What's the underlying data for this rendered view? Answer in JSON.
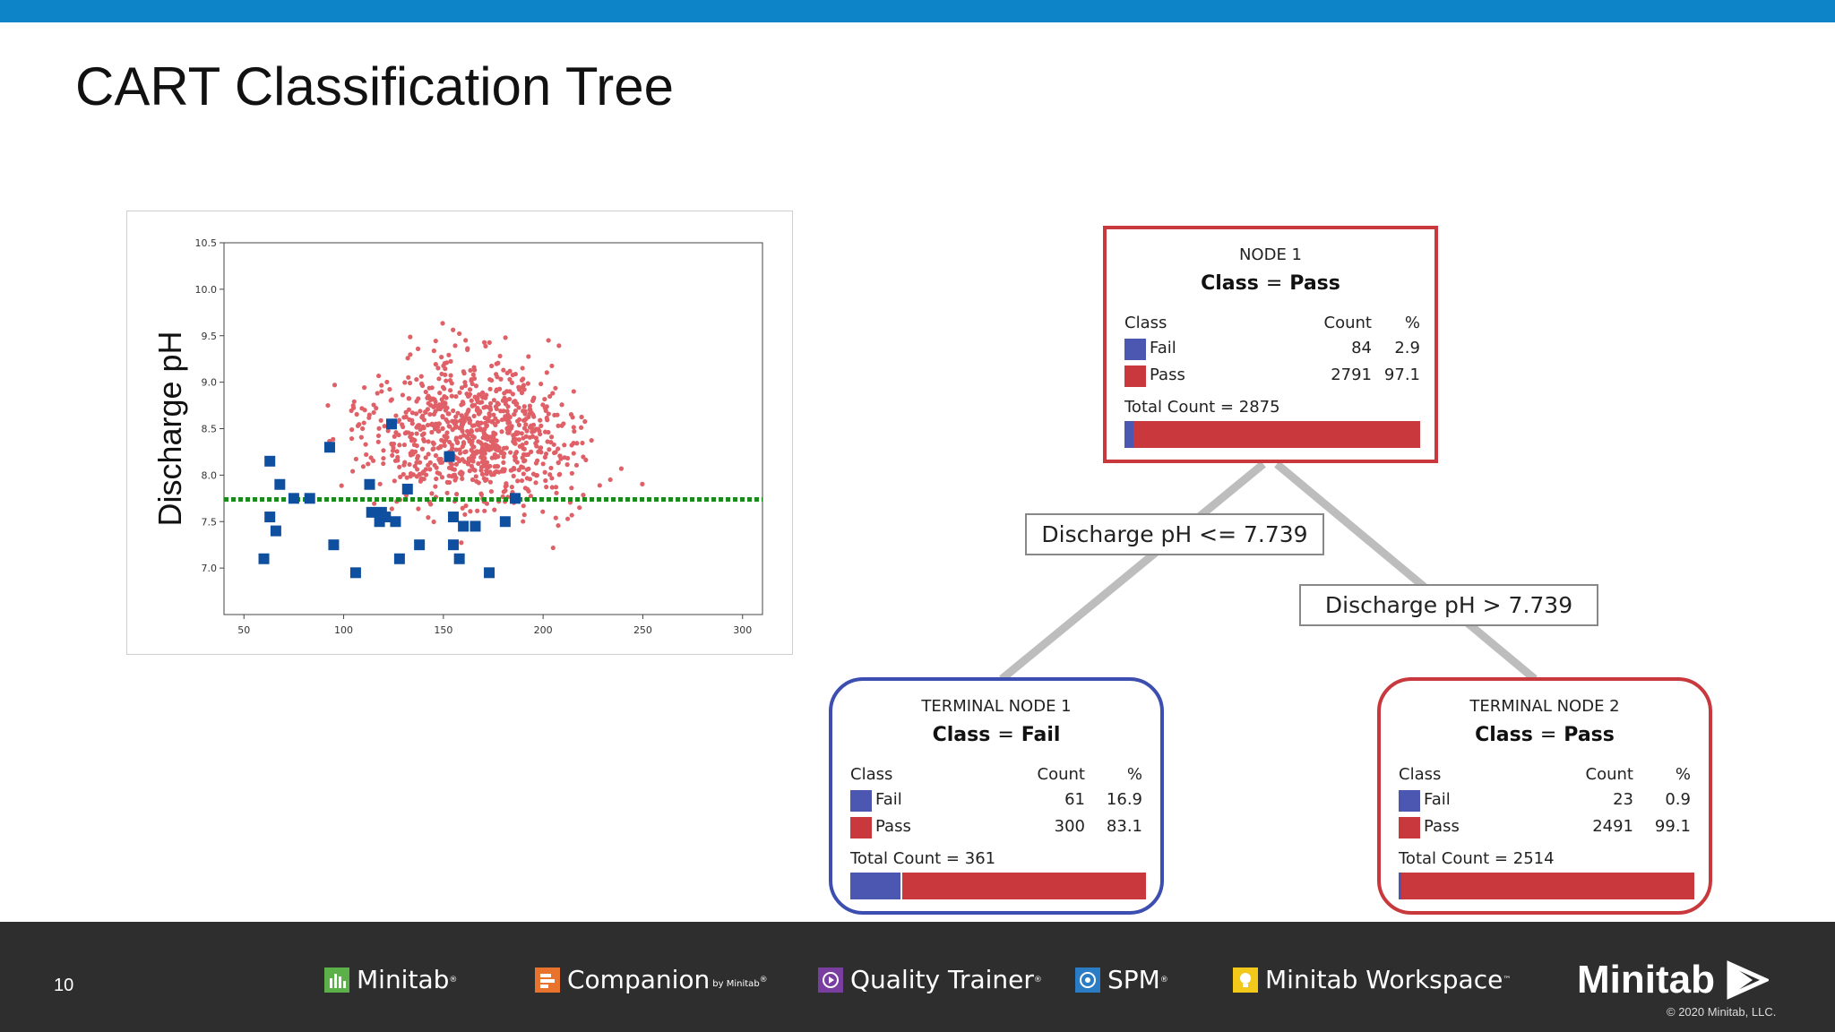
{
  "page": {
    "title": "CART Classification Tree",
    "page_number": "10"
  },
  "chart_data": {
    "type": "scatter",
    "title": "",
    "xlabel": "",
    "ylabel": "Discharge pH",
    "xlim": [
      40,
      310
    ],
    "ylim": [
      6.5,
      10.5
    ],
    "xticks": [
      50,
      100,
      150,
      200,
      250,
      300
    ],
    "yticks": [
      7.0,
      7.5,
      8.0,
      8.5,
      9.0,
      9.5,
      10.0,
      10.5
    ],
    "ytick_labels": [
      "7.0",
      "7.5",
      "8.0",
      "8.5",
      "9.0",
      "9.5",
      "10.0",
      "10.5"
    ],
    "threshold": {
      "y": 7.739,
      "color": "#1a8a1a",
      "style": "dotted"
    },
    "series": [
      {
        "class": "Fail",
        "marker": "square",
        "color": "#0e4fa0",
        "points": [
          [
            60,
            7.1
          ],
          [
            63,
            8.15
          ],
          [
            63,
            7.55
          ],
          [
            66,
            7.4
          ],
          [
            68,
            7.9
          ],
          [
            75,
            7.75
          ],
          [
            83,
            7.75
          ],
          [
            93,
            8.3
          ],
          [
            95,
            7.25
          ],
          [
            106,
            6.95
          ],
          [
            113,
            7.9
          ],
          [
            114,
            7.6
          ],
          [
            118,
            7.5
          ],
          [
            119,
            7.6
          ],
          [
            121,
            7.55
          ],
          [
            124,
            8.55
          ],
          [
            126,
            7.5
          ],
          [
            128,
            7.1
          ],
          [
            132,
            7.85
          ],
          [
            138,
            7.25
          ],
          [
            153,
            8.2
          ],
          [
            155,
            7.25
          ],
          [
            155,
            7.55
          ],
          [
            158,
            7.1
          ],
          [
            160,
            7.45
          ],
          [
            166,
            7.45
          ],
          [
            173,
            6.95
          ],
          [
            181,
            7.5
          ],
          [
            186,
            7.75
          ]
        ]
      },
      {
        "class": "Pass",
        "marker": "circle",
        "color": "#e06068",
        "point_count": 900
      }
    ]
  },
  "tree": {
    "node1": {
      "header": "NODE 1",
      "class_label": "Class",
      "equals": "=",
      "class_value": "Pass",
      "col_class": "Class",
      "col_count": "Count",
      "col_pct": "%",
      "rows": [
        {
          "name": "Fail",
          "count": "84",
          "pct": "2.9",
          "color": "#4b57b0"
        },
        {
          "name": "Pass",
          "count": "2791",
          "pct": "97.1",
          "color": "#c8383c"
        }
      ],
      "total": "Total Count = 2875",
      "fail_fraction": 0.029
    },
    "split_left": "Discharge pH <= 7.739",
    "split_right": "Discharge pH > 7.739",
    "terminal1": {
      "header": "TERMINAL NODE 1",
      "class_label": "Class",
      "equals": "=",
      "class_value": "Fail",
      "col_class": "Class",
      "col_count": "Count",
      "col_pct": "%",
      "rows": [
        {
          "name": "Fail",
          "count": "61",
          "pct": "16.9",
          "color": "#4b57b0"
        },
        {
          "name": "Pass",
          "count": "300",
          "pct": "83.1",
          "color": "#c8383c"
        }
      ],
      "total": "Total Count = 361",
      "fail_fraction": 0.169
    },
    "terminal2": {
      "header": "TERMINAL NODE 2",
      "class_label": "Class",
      "equals": "=",
      "class_value": "Pass",
      "col_class": "Class",
      "col_count": "Count",
      "col_pct": "%",
      "rows": [
        {
          "name": "Fail",
          "count": "23",
          "pct": "0.9",
          "color": "#4b57b0"
        },
        {
          "name": "Pass",
          "count": "2491",
          "pct": "99.1",
          "color": "#c8383c"
        }
      ],
      "total": "Total Count = 2514",
      "fail_fraction": 0.009
    }
  },
  "footer": {
    "products": [
      {
        "name": "Minitab",
        "icon": "bar-chart-icon",
        "color": "#5bb04a"
      },
      {
        "name": "Companion",
        "sub": "by Minitab",
        "icon": "companion-icon",
        "color": "#e8732c"
      },
      {
        "name": "Quality Trainer",
        "icon": "play-icon",
        "color": "#7a3ea0"
      },
      {
        "name": "SPM",
        "icon": "spm-icon",
        "color": "#2a7cc4"
      },
      {
        "name": "Minitab Workspace",
        "icon": "bulb-icon",
        "color": "#f2c91a"
      }
    ],
    "logo_text": "Minitab",
    "copyright": "© 2020 Minitab, LLC."
  }
}
